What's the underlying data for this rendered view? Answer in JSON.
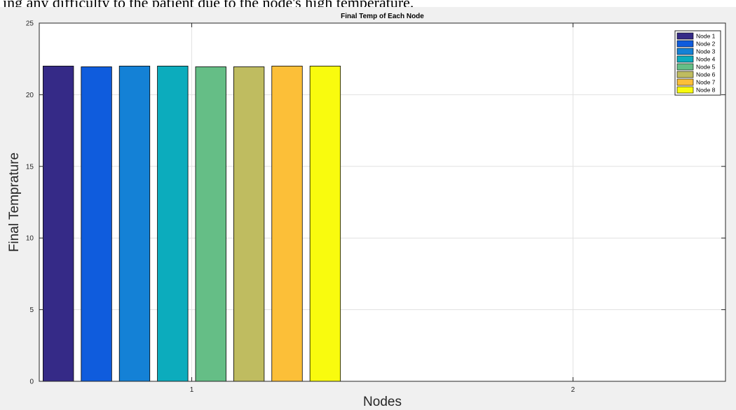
{
  "caption": "ing any difficulty to the patient due to the node's high temperature.",
  "chart_data": {
    "type": "bar",
    "title": "Final Temp of Each Node",
    "xlabel": "Nodes",
    "ylabel": "Final Temprature",
    "x_ticks": [
      1,
      2
    ],
    "xlim": [
      0.6,
      2.4
    ],
    "ylim": [
      0,
      25
    ],
    "y_ticks": [
      0,
      5,
      10,
      15,
      20,
      25
    ],
    "grid": true,
    "legend_position": "top-right",
    "group_x": 1,
    "series": [
      {
        "name": "Node 1",
        "value": 22,
        "color": "#352A87"
      },
      {
        "name": "Node 2",
        "value": 21.95,
        "color": "#0F5CDD"
      },
      {
        "name": "Node 3",
        "value": 22,
        "color": "#1481D6"
      },
      {
        "name": "Node 4",
        "value": 22,
        "color": "#0CACBD"
      },
      {
        "name": "Node 5",
        "value": 21.95,
        "color": "#65BE86"
      },
      {
        "name": "Node 6",
        "value": 21.95,
        "color": "#BFBC60"
      },
      {
        "name": "Node 7",
        "value": 22,
        "color": "#FCBF38"
      },
      {
        "name": "Node 8",
        "value": 22,
        "color": "#F9FB0E"
      }
    ]
  }
}
